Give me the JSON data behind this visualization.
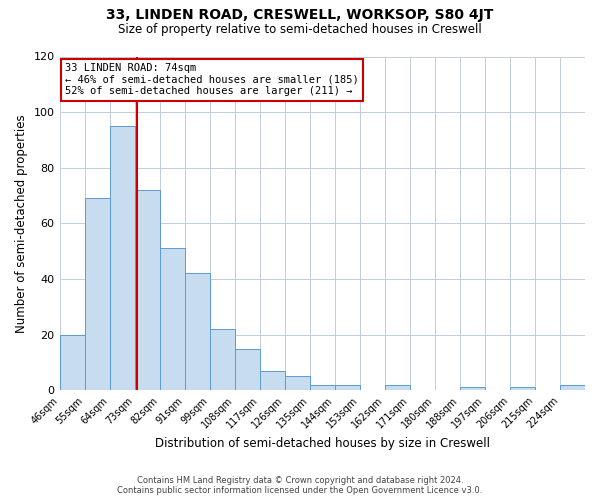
{
  "title": "33, LINDEN ROAD, CRESWELL, WORKSOP, S80 4JT",
  "subtitle": "Size of property relative to semi-detached houses in Creswell",
  "xlabel": "Distribution of semi-detached houses by size in Creswell",
  "ylabel": "Number of semi-detached properties",
  "bin_labels": [
    "46sqm",
    "55sqm",
    "64sqm",
    "73sqm",
    "82sqm",
    "91sqm",
    "99sqm",
    "108sqm",
    "117sqm",
    "126sqm",
    "135sqm",
    "144sqm",
    "153sqm",
    "162sqm",
    "171sqm",
    "180sqm",
    "188sqm",
    "197sqm",
    "206sqm",
    "215sqm",
    "224sqm"
  ],
  "bar_heights": [
    20,
    69,
    95,
    72,
    51,
    42,
    22,
    15,
    7,
    5,
    2,
    2,
    0,
    2,
    0,
    0,
    1,
    0,
    1,
    0,
    2
  ],
  "bar_color": "#c8dcf0",
  "bar_edge_color": "#5b9bd5",
  "property_value": 74,
  "vline_color": "#cc0000",
  "annotation_title": "33 LINDEN ROAD: 74sqm",
  "annotation_line1": "← 46% of semi-detached houses are smaller (185)",
  "annotation_line2": "52% of semi-detached houses are larger (211) →",
  "annotation_box_color": "#ffffff",
  "annotation_box_edge_color": "#cc0000",
  "ylim": [
    0,
    120
  ],
  "yticks": [
    0,
    20,
    40,
    60,
    80,
    100,
    120
  ],
  "footer_line1": "Contains HM Land Registry data © Crown copyright and database right 2024.",
  "footer_line2": "Contains public sector information licensed under the Open Government Licence v3.0.",
  "background_color": "#ffffff",
  "grid_color": "#c0cde0"
}
